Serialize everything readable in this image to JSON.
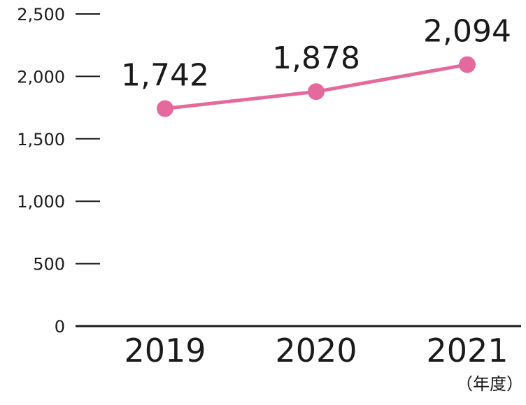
{
  "chart_data": {
    "type": "line",
    "categories": [
      "2019",
      "2020",
      "2021"
    ],
    "series": [
      {
        "values": [
          1742,
          1878,
          2094
        ],
        "data_labels": [
          "1,742",
          "1,878",
          "2,094"
        ]
      }
    ],
    "y_ticks": [
      0,
      500,
      1000,
      1500,
      2000,
      2500
    ],
    "y_tick_labels": [
      "0",
      "500",
      "1,000",
      "1,500",
      "2,000",
      "2,500"
    ],
    "ylim": [
      0,
      2500
    ],
    "x_unit_label": "（年度）",
    "grid": false,
    "legend": "none",
    "line_color": "#e46a9d",
    "axis_color": "#1a1a1a"
  }
}
